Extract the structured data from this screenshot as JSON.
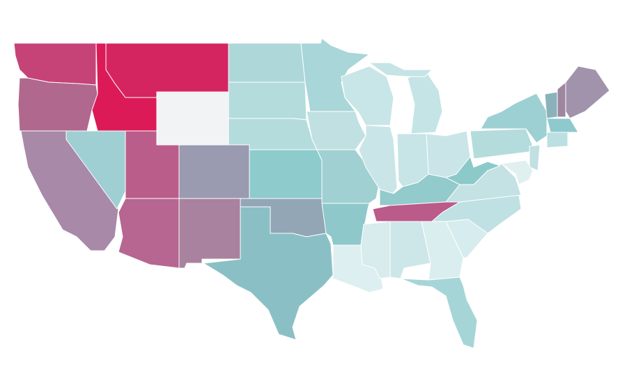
{
  "map": {
    "regions": [
      {
        "color": "#c64377"
      },
      {
        "color": "#b0688e"
      },
      {
        "color": "#a889a8"
      },
      {
        "color": "#9fcfd2"
      },
      {
        "color": "#dc1a58"
      },
      {
        "color": "#d52560"
      },
      {
        "color": "#f2f3f5"
      },
      {
        "color": "#bb5d8a"
      },
      {
        "color": "#9a9bb0"
      },
      {
        "color": "#b66690"
      },
      {
        "color": "#a8829e"
      },
      {
        "color": "#aed7d9"
      },
      {
        "color": "#b5dcdd"
      },
      {
        "color": "#b4dcdd"
      },
      {
        "color": "#8ecbcc"
      },
      {
        "color": "#92a6b6"
      },
      {
        "color": "#8ac0c5"
      },
      {
        "color": "#a9d6d8"
      },
      {
        "color": "#c0e0e2"
      },
      {
        "color": "#a1d0d2"
      },
      {
        "color": "#8ec8cb"
      },
      {
        "color": "#ddeff0"
      },
      {
        "color": "#c8e5e7"
      },
      {
        "color": "#c9e5e7"
      },
      {
        "color": "#c5e4e6"
      },
      {
        "color": "#c7e4e6"
      },
      {
        "color": "#c9e5e7"
      },
      {
        "color": "#93cacc"
      },
      {
        "color": "#bb5b8a"
      },
      {
        "color": "#d8eced"
      },
      {
        "color": "#cde7e9"
      },
      {
        "color": "#dbeeef"
      },
      {
        "color": "#a6d5d7"
      },
      {
        "color": "#d6ecee"
      },
      {
        "color": "#bfe1e3"
      },
      {
        "color": "#c4e2e4"
      },
      {
        "color": "#8ccaca"
      },
      {
        "color": "#b4dcdd"
      },
      {
        "color": "#9dd0d2"
      },
      {
        "color": "#8ab2bb"
      },
      {
        "color": "#9e86a0"
      },
      {
        "color": "#a293ad"
      },
      {
        "color": "#8ecacd"
      },
      {
        "color": "#bcdfe1"
      },
      {
        "color": "#c0e0e2"
      },
      {
        "color": "#e0f0f1"
      }
    ]
  }
}
